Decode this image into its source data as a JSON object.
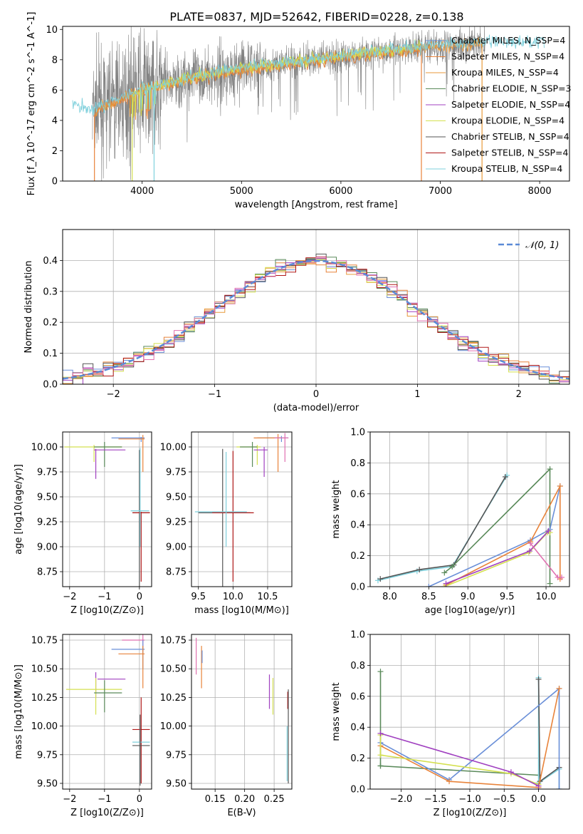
{
  "title": "PLATE=0837, MJD=52642, FIBERID=0228, z=0.138",
  "colors": {
    "chabrier_miles": "#6a8fd8",
    "salpeter_miles": "#e8833a",
    "kroupa_miles": "#e89a3a",
    "chabrier_elodie": "#5a8a5a",
    "salpeter_elodie": "#a040c0",
    "kroupa_elodie": "#d4e050",
    "chabrier_stelib": "#555555",
    "salpeter_stelib": "#b01818",
    "kroupa_stelib": "#7fd0dc",
    "pink": "#e070b0",
    "gray_spec": "#808080"
  },
  "chart_data": [
    {
      "id": "spectrum",
      "type": "line",
      "xlabel": "wavelength [Angstrom, rest frame]",
      "ylabel": "Flux [f_λ 10^-17 erg cm^-2 s^-1 A^-1]",
      "xlim": [
        3200,
        8300
      ],
      "ylim": [
        0,
        10.2
      ],
      "xticks": [
        "4000",
        "5000",
        "6000",
        "7000",
        "8000"
      ],
      "yticks": [
        "0",
        "2",
        "4",
        "6",
        "8",
        "10"
      ],
      "legend_position": "top-right",
      "legend": [
        "Chabrier MILES, N_SSP=4",
        "Salpeter MILES, N_SSP=4",
        "Kroupa MILES, N_SSP=4",
        "Chabrier ELODIE, N_SSP=3",
        "Salpeter ELODIE, N_SSP=4",
        "Kroupa ELODIE, N_SSP=4",
        "Chabrier STELIB, N_SSP=4",
        "Salpeter STELIB, N_SSP=4",
        "Kroupa STELIB, N_SSP=4"
      ],
      "continuum": {
        "x": [
          3300,
          3500,
          3700,
          4000,
          4500,
          5000,
          5500,
          6000,
          6500,
          7000,
          7500
        ],
        "y": [
          5.0,
          4.6,
          5.2,
          6.0,
          6.8,
          7.4,
          7.8,
          8.2,
          8.6,
          8.9,
          9.1
        ]
      }
    },
    {
      "id": "residuals",
      "type": "line",
      "xlabel": "(data-model)/error",
      "ylabel": "Normed distribution",
      "xlim": [
        -2.5,
        2.5
      ],
      "ylim": [
        0,
        0.5
      ],
      "xticks": [
        "−2",
        "−1",
        "0",
        "1",
        "2"
      ],
      "yticks": [
        "0.0",
        "0.1",
        "0.2",
        "0.3",
        "0.4"
      ],
      "legend": [
        "𝒩(0, 1)"
      ],
      "legend_position": "top-right",
      "grid": true
    },
    {
      "id": "age_vs_Z",
      "type": "scatter",
      "xlabel": "Z [log10(Z/Z⊙)]",
      "ylabel": "age  [log10(age/yr)]",
      "xlim": [
        -2.2,
        0.35
      ],
      "ylim": [
        8.6,
        10.15
      ],
      "xticks": [
        "−2",
        "−1",
        "0"
      ],
      "yticks": [
        "8.75",
        "9.00",
        "9.25",
        "9.50",
        "9.75",
        "10.00"
      ],
      "grid": true
    },
    {
      "id": "age_vs_mass",
      "type": "scatter",
      "xlabel": "mass [log10(M/M⊙)]",
      "xlim": [
        9.4,
        10.85
      ],
      "ylim": [
        8.6,
        10.15
      ],
      "xticks": [
        "9.5",
        "10.0",
        "10.5"
      ],
      "yticks": [
        "8.75",
        "9.00",
        "9.25",
        "9.50",
        "9.75",
        "10.00"
      ],
      "grid": true
    },
    {
      "id": "weight_vs_age",
      "type": "line",
      "xlabel": "age  [log10(age/yr)]",
      "ylabel": "mass weight",
      "xlim": [
        7.75,
        10.3
      ],
      "ylim": [
        0,
        1.0
      ],
      "xticks": [
        "8.0",
        "8.5",
        "9.0",
        "9.5",
        "10.0"
      ],
      "yticks": [
        "0.0",
        "0.2",
        "0.4",
        "0.6",
        "0.8",
        "1.0"
      ],
      "grid": true,
      "series": [
        {
          "color": "kroupa_stelib",
          "x": [
            7.85,
            8.35,
            8.8,
            9.5
          ],
          "y": [
            0.04,
            0.1,
            0.13,
            0.72
          ]
        },
        {
          "color": "chabrier_stelib",
          "x": [
            7.88,
            8.38,
            8.82,
            9.48
          ],
          "y": [
            0.05,
            0.11,
            0.14,
            0.71
          ]
        },
        {
          "color": "chabrier_elodie",
          "x": [
            8.7,
            8.8,
            10.05,
            10.05
          ],
          "y": [
            0.09,
            0.13,
            0.76,
            0.02
          ]
        },
        {
          "color": "chabrier_miles",
          "x": [
            8.5,
            9.8,
            10.05,
            10.18
          ],
          "y": [
            0.0,
            0.3,
            0.37,
            0.65
          ]
        },
        {
          "color": "salpeter_miles",
          "x": [
            8.72,
            9.8,
            10.18,
            10.18
          ],
          "y": [
            0.01,
            0.29,
            0.65,
            0.05
          ]
        },
        {
          "color": "kroupa_elodie",
          "x": [
            8.7,
            9.78,
            10.02,
            10.05
          ],
          "y": [
            0.0,
            0.22,
            0.35,
            0.35
          ]
        },
        {
          "color": "salpeter_elodie",
          "x": [
            8.72,
            9.79,
            10.03
          ],
          "y": [
            0.02,
            0.23,
            0.36
          ]
        },
        {
          "color": "pink",
          "x": [
            9.8,
            10.15,
            10.2
          ],
          "y": [
            0.28,
            0.06,
            0.06
          ]
        }
      ]
    },
    {
      "id": "mass_vs_Z",
      "type": "scatter",
      "xlabel": "Z [log10(Z/Z⊙)]",
      "ylabel": "mass [log10(M/M⊙)]",
      "xlim": [
        -2.2,
        0.35
      ],
      "ylim": [
        9.45,
        10.8
      ],
      "xticks": [
        "−2",
        "−1",
        "0"
      ],
      "yticks": [
        "9.50",
        "9.75",
        "10.00",
        "10.25",
        "10.50",
        "10.75"
      ],
      "grid": true
    },
    {
      "id": "mass_vs_ebv",
      "type": "scatter",
      "xlabel": "E(B-V)",
      "xlim": [
        0.11,
        0.28
      ],
      "ylim": [
        9.45,
        10.8
      ],
      "xticks": [
        "0.15",
        "0.20",
        "0.25"
      ],
      "yticks": [
        "9.50",
        "9.75",
        "10.00",
        "10.25",
        "10.50",
        "10.75"
      ],
      "grid": true
    },
    {
      "id": "weight_vs_Z",
      "type": "line",
      "xlabel": "Z [log10(Z/Z⊙)]",
      "ylabel": "mass weight",
      "xlim": [
        -2.45,
        0.45
      ],
      "ylim": [
        0,
        1.0
      ],
      "xticks": [
        "−2.0",
        "−1.5",
        "−1.0",
        "−0.5",
        "0.0"
      ],
      "yticks": [
        "0.0",
        "0.2",
        "0.4",
        "0.6",
        "0.8",
        "1.0"
      ],
      "grid": true,
      "series": [
        {
          "color": "chabrier_elodie",
          "x": [
            -2.3,
            -2.3,
            -2.3,
            0.0
          ],
          "y": [
            0.76,
            0.15,
            0.15,
            0.09
          ]
        },
        {
          "color": "kroupa_stelib",
          "x": [
            0.0,
            0.0,
            0.3,
            0.3
          ],
          "y": [
            0.72,
            0.04,
            0.13,
            0.0
          ]
        },
        {
          "color": "chabrier_stelib",
          "x": [
            0.0,
            0.02,
            0.3
          ],
          "y": [
            0.71,
            0.05,
            0.14
          ]
        },
        {
          "color": "chabrier_miles",
          "x": [
            -2.3,
            -1.3,
            0.3,
            0.3
          ],
          "y": [
            0.3,
            0.06,
            0.65,
            0.0
          ]
        },
        {
          "color": "salpeter_miles",
          "x": [
            -2.3,
            -1.3,
            0.0,
            0.3
          ],
          "y": [
            0.28,
            0.05,
            0.01,
            0.65
          ]
        },
        {
          "color": "kroupa_elodie",
          "x": [
            -2.3,
            -2.3,
            -0.4,
            0.0
          ],
          "y": [
            0.35,
            0.22,
            0.1,
            0.03
          ]
        },
        {
          "color": "salpeter_elodie",
          "x": [
            -2.3,
            -0.4,
            0.0
          ],
          "y": [
            0.36,
            0.11,
            0.02
          ]
        }
      ]
    }
  ]
}
